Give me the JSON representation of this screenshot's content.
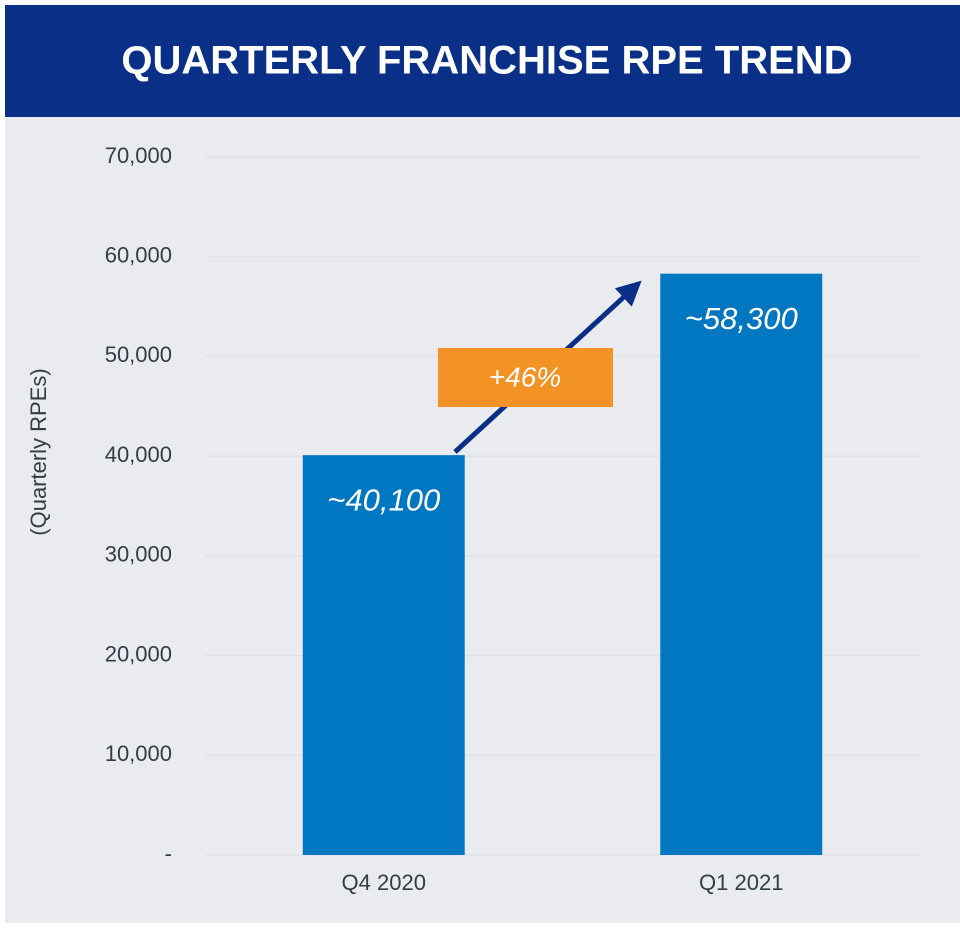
{
  "chart_data": {
    "type": "bar",
    "title": "QUARTERLY FRANCHISE RPE TREND",
    "y_label": "(Quarterly RPEs)",
    "categories": [
      "Q4 2020",
      "Q1 2021"
    ],
    "values": [
      40100,
      58300
    ],
    "value_labels": [
      "~40,100",
      "~58,300"
    ],
    "color": "#0077c0",
    "annotation": "+46%",
    "ylim": [
      0,
      70000
    ],
    "yticks": [
      {
        "value": 0,
        "label": "-"
      },
      {
        "value": 10000,
        "label": "10,000"
      },
      {
        "value": 20000,
        "label": "20,000"
      },
      {
        "value": 30000,
        "label": "30,000"
      },
      {
        "value": 40000,
        "label": "40,000"
      },
      {
        "value": 50000,
        "label": "50,000"
      },
      {
        "value": 60000,
        "label": "60,000"
      },
      {
        "value": 70000,
        "label": "70,000"
      }
    ],
    "grid": true
  }
}
